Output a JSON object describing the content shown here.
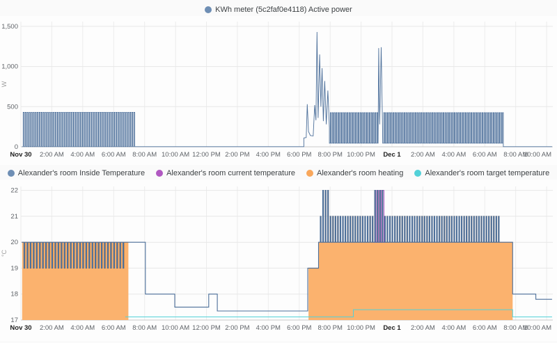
{
  "page": {
    "background": "#fafafa"
  },
  "chart_data": [
    {
      "type": "line",
      "title": "KWh meter (5c2faf0e4118) Active power",
      "ylabel": "W",
      "ylim": [
        0,
        1560
      ],
      "yticks": [
        0,
        500,
        1000,
        1500
      ],
      "ytick_labels": [
        "0",
        "500",
        "1,000",
        "1,500"
      ],
      "xlim": [
        0,
        34.4
      ],
      "xticks": [
        0,
        2,
        4,
        6,
        8,
        10,
        12,
        14,
        16,
        18,
        20,
        22,
        24,
        26,
        28,
        30,
        32,
        34
      ],
      "xtick_labels": [
        "Nov 30",
        "2:00 AM",
        "4:00 AM",
        "6:00 AM",
        "8:00 AM",
        "10:00 AM",
        "12:00 PM",
        "2:00 PM",
        "4:00 PM",
        "6:00 PM",
        "8:00 PM",
        "10:00 PM",
        "Dec 1",
        "2:00 AM",
        "4:00 AM",
        "6:00 AM",
        "8:00 AM",
        "10:00 AM"
      ],
      "major_tick_labels": [
        "Nov 30",
        "Dec 1"
      ],
      "grid": true,
      "legend_position": "top",
      "legend": [
        {
          "label": "KWh meter (5c2faf0e4118) Active power",
          "color": "#6e8eb4"
        }
      ],
      "series": [
        {
          "name": "active_power",
          "unit": "W",
          "color": "#4c6f9a",
          "width": 0.9,
          "segments": [
            {
              "type": "square",
              "t0": 0.08,
              "t1": 7.43,
              "base": 2,
              "peak": 430,
              "period": 0.13,
              "w": 0.06
            },
            {
              "type": "flat",
              "t0": 7.43,
              "t1": 18.3,
              "v": 2
            },
            {
              "type": "poly",
              "pts": [
                [
                  18.3,
                  110
                ],
                [
                  18.45,
                  115
                ],
                [
                  18.52,
                  530
                ],
                [
                  18.6,
                  190
                ],
                [
                  18.72,
                  140
                ],
                [
                  18.9,
                  135
                ],
                [
                  19.0,
                  520
                ],
                [
                  19.08,
                  330
                ],
                [
                  19.15,
                  1430
                ],
                [
                  19.22,
                  360
                ],
                [
                  19.32,
                  1150
                ],
                [
                  19.4,
                  500
                ],
                [
                  19.48,
                  980
                ],
                [
                  19.56,
                  320
                ],
                [
                  19.65,
                  820
                ],
                [
                  19.75,
                  280
                ],
                [
                  19.85,
                  700
                ],
                [
                  19.95,
                  240
                ]
              ]
            },
            {
              "type": "square",
              "t0": 19.95,
              "t1": 23.1,
              "base": 45,
              "peak": 425,
              "period": 0.12,
              "w": 0.055
            },
            {
              "type": "poly",
              "pts": [
                [
                  23.14,
                  1230
                ],
                [
                  23.2,
                  280
                ],
                [
                  23.3,
                  1240
                ],
                [
                  23.38,
                  300
                ]
              ]
            },
            {
              "type": "square",
              "t0": 23.4,
              "t1": 31.2,
              "base": 45,
              "peak": 425,
              "period": 0.12,
              "w": 0.055
            },
            {
              "type": "flat",
              "t0": 31.2,
              "t1": 34.35,
              "v": 2
            }
          ]
        }
      ]
    },
    {
      "type": "line",
      "title": "",
      "ylabel": "°C",
      "ylim": [
        17,
        22.15
      ],
      "yticks": [
        17,
        18,
        19,
        20,
        21,
        22
      ],
      "ytick_labels": [
        "17",
        "18",
        "19",
        "20",
        "21",
        "22"
      ],
      "xlim": [
        0,
        34.4
      ],
      "xticks": [
        0,
        2,
        4,
        6,
        8,
        10,
        12,
        14,
        16,
        18,
        20,
        22,
        24,
        26,
        28,
        30,
        32,
        34
      ],
      "xtick_labels": [
        "Nov 30",
        "2:00 AM",
        "4:00 AM",
        "6:00 AM",
        "8:00 AM",
        "10:00 AM",
        "12:00 PM",
        "2:00 PM",
        "4:00 PM",
        "6:00 PM",
        "8:00 PM",
        "10:00 PM",
        "Dec 1",
        "2:00 AM",
        "4:00 AM",
        "6:00 AM",
        "8:00 AM",
        "10:00 AM"
      ],
      "major_tick_labels": [
        "Nov 30",
        "Dec 1"
      ],
      "grid": true,
      "legend_position": "top",
      "legend": [
        {
          "label": "Alexander's room Inside Temperature",
          "color": "#6e8eb4"
        },
        {
          "label": "Alexander's room current temperature",
          "color": "#b058c1"
        },
        {
          "label": "Alexander's room heating",
          "color": "#f9a75b"
        },
        {
          "label": "Alexander's room target temperature",
          "color": "#52d1d8"
        }
      ],
      "series": [
        {
          "name": "heating",
          "color": "#f79b41",
          "width": 1,
          "fill": true,
          "fill_color": "#fbb26e",
          "segments": [
            {
              "type": "square",
              "t0": 0.08,
              "t1": 6.8,
              "base": 20,
              "peak": 19,
              "period": 0.2,
              "w": 0.05
            },
            {
              "type": "step",
              "pts": [
                [
                  6.8,
                  20
                ],
                [
                  6.95,
                  20
                ]
              ]
            },
            {
              "type": "gap"
            },
            {
              "type": "step",
              "pts": [
                [
                  18.6,
                  19
                ],
                [
                  19.25,
                  19
                ]
              ]
            },
            {
              "type": "square",
              "t0": 19.25,
              "t1": 31.05,
              "base": 20,
              "peak": 21,
              "period": 0.16,
              "w": 0.05,
              "windows": [
                [
                  19.45,
                  19.95
                ],
                [
                  22.85,
                  23.5
                ]
              ],
              "peak2": 22
            },
            {
              "type": "step",
              "pts": [
                [
                  31.05,
                  20
                ],
                [
                  31.8,
                  20
                ]
              ]
            }
          ]
        },
        {
          "name": "current_temperature",
          "color": "#b058c1",
          "width": 1,
          "segments": [
            {
              "type": "square",
              "t0": 22.8,
              "t1": 23.55,
              "base": 20,
              "peak": 22,
              "period": 0.17,
              "w": 0.07
            }
          ]
        },
        {
          "name": "target_temperature",
          "color": "#52d1d8",
          "width": 1,
          "segments": [
            {
              "type": "step",
              "pts": [
                [
                  6.75,
                  17.12
                ],
                [
                  21.5,
                  17.4
                ],
                [
                  31.8,
                  17.12
                ],
                [
                  34.35,
                  17.12
                ]
              ]
            }
          ]
        },
        {
          "name": "inside_temperature",
          "color": "#4c6f9a",
          "width": 1.1,
          "segments": [
            {
              "type": "square",
              "t0": 0.05,
              "t1": 6.8,
              "base": 20,
              "peak": 19,
              "period": 0.2,
              "w": 0.05
            },
            {
              "type": "step",
              "pts": [
                [
                  6.8,
                  20
                ],
                [
                  8.05,
                  18
                ],
                [
                  9.95,
                  17.5
                ],
                [
                  12.15,
                  18
                ],
                [
                  12.7,
                  17.35
                ],
                [
                  18.55,
                  19
                ],
                [
                  19.25,
                  19
                ]
              ]
            },
            {
              "type": "square",
              "t0": 19.25,
              "t1": 31.05,
              "base": 20,
              "peak": 21,
              "period": 0.16,
              "w": 0.05,
              "windows": [
                [
                  19.45,
                  19.95
                ],
                [
                  22.85,
                  23.5
                ]
              ],
              "peak2": 22
            },
            {
              "type": "step",
              "pts": [
                [
                  31.05,
                  20
                ],
                [
                  31.8,
                  18
                ],
                [
                  33.3,
                  17.8
                ],
                [
                  34.35,
                  17.8
                ]
              ]
            }
          ]
        }
      ]
    }
  ]
}
